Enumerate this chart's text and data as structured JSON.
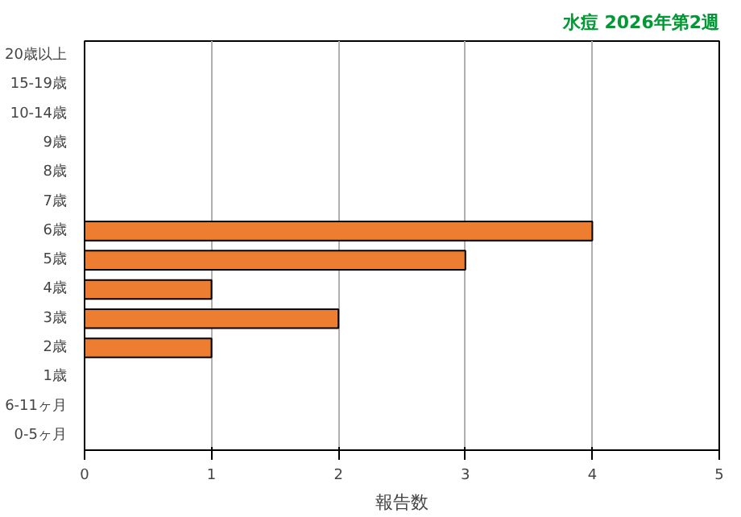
{
  "chart_data": {
    "type": "bar",
    "orientation": "horizontal",
    "title": "水痘 2026年第2週",
    "xlabel": "報告数",
    "categories": [
      "20歳以上",
      "15-19歳",
      "10-14歳",
      "9歳",
      "8歳",
      "7歳",
      "6歳",
      "5歳",
      "4歳",
      "3歳",
      "2歳",
      "1歳",
      "6-11ヶ月",
      "0-5ヶ月"
    ],
    "values": [
      0,
      0,
      0,
      0,
      0,
      0,
      4,
      3,
      1,
      2,
      1,
      0,
      0,
      0
    ],
    "color": "#ed7d31",
    "xlim": [
      0,
      5
    ],
    "xticks": [
      0,
      1,
      2,
      3,
      4,
      5
    ],
    "grid": "x"
  }
}
